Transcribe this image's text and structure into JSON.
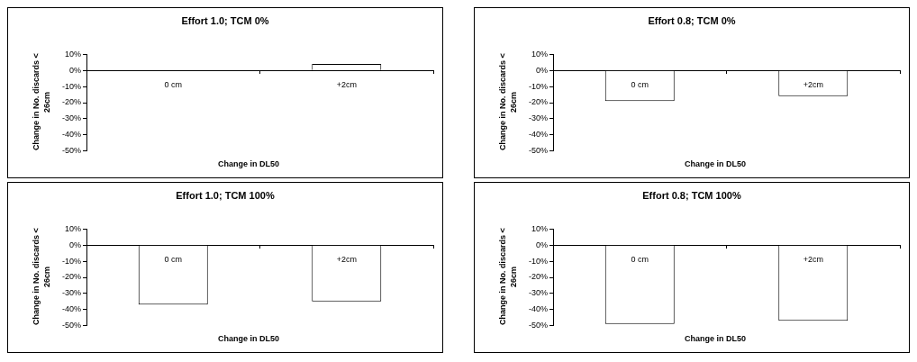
{
  "chart_data": [
    {
      "type": "bar",
      "title": "Effort 1.0; TCM 0%",
      "xlabel": "Change in DL50",
      "ylabel": "Change in No. discards < 26cm",
      "categories": [
        "0 cm",
        "+2cm"
      ],
      "values": [
        0,
        4
      ],
      "color": "#ffffff",
      "ylim": [
        -50,
        10
      ],
      "yticks": [
        {
          "value": -50,
          "label": "-50%"
        },
        {
          "value": -40,
          "label": "-40%"
        },
        {
          "value": -30,
          "label": "-30%"
        },
        {
          "value": -20,
          "label": "-20%"
        },
        {
          "value": -10,
          "label": "-10%"
        },
        {
          "value": 0,
          "label": "0%"
        },
        {
          "value": 10,
          "label": "10%"
        }
      ],
      "grid": false
    },
    {
      "type": "bar",
      "title": "Effort 0.8; TCM 0%",
      "xlabel": "Change in DL50",
      "ylabel": "Change in No. discards < 26cm",
      "categories": [
        "0 cm",
        "+2cm"
      ],
      "values": [
        -19,
        -16
      ],
      "color": "#ffffff",
      "ylim": [
        -50,
        10
      ],
      "yticks": [
        {
          "value": -50,
          "label": "-50%"
        },
        {
          "value": -40,
          "label": "-40%"
        },
        {
          "value": -30,
          "label": "-30%"
        },
        {
          "value": -20,
          "label": "-20%"
        },
        {
          "value": -10,
          "label": "-10%"
        },
        {
          "value": 0,
          "label": "0%"
        },
        {
          "value": 10,
          "label": "10%"
        }
      ],
      "grid": false
    },
    {
      "type": "bar",
      "title": "Effort 1.0; TCM 100%",
      "xlabel": "Change in DL50",
      "ylabel": "Change in No. discards < 26cm",
      "categories": [
        "0 cm",
        "+2cm"
      ],
      "values": [
        -37,
        -35
      ],
      "color": "#ffffff",
      "ylim": [
        -50,
        10
      ],
      "yticks": [
        {
          "value": -50,
          "label": "-50%"
        },
        {
          "value": -40,
          "label": "-40%"
        },
        {
          "value": -30,
          "label": "-30%"
        },
        {
          "value": -20,
          "label": "-20%"
        },
        {
          "value": -10,
          "label": "-10%"
        },
        {
          "value": 0,
          "label": "0%"
        },
        {
          "value": 10,
          "label": "10%"
        }
      ],
      "grid": false
    },
    {
      "type": "bar",
      "title": "Effort 0.8; TCM 100%",
      "xlabel": "Change in DL50",
      "ylabel": "Change in No. discards < 26cm",
      "categories": [
        "0 cm",
        "+2cm"
      ],
      "values": [
        -49,
        -47
      ],
      "color": "#ffffff",
      "ylim": [
        -50,
        10
      ],
      "yticks": [
        {
          "value": -50,
          "label": "-50%"
        },
        {
          "value": -40,
          "label": "-40%"
        },
        {
          "value": -30,
          "label": "-30%"
        },
        {
          "value": -20,
          "label": "-20%"
        },
        {
          "value": -10,
          "label": "-10%"
        },
        {
          "value": 0,
          "label": "0%"
        },
        {
          "value": 10,
          "label": "10%"
        }
      ],
      "grid": false
    }
  ]
}
